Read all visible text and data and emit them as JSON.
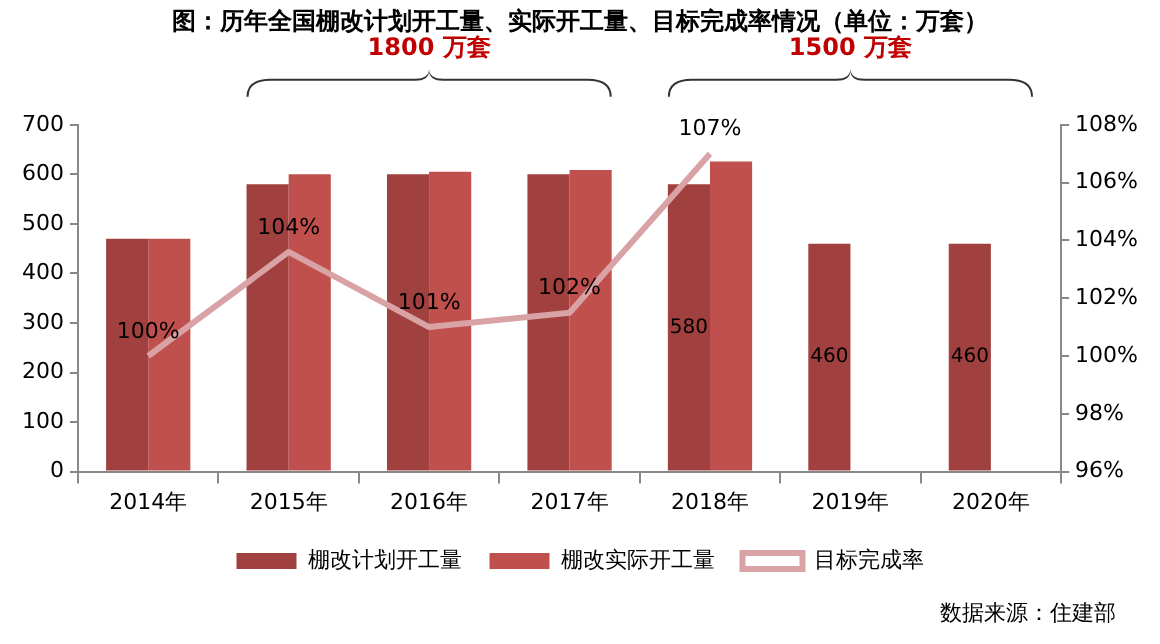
{
  "chart_data": {
    "type": "bar",
    "title": "图：历年全国棚改计划开工量、实际开工量、目标完成率情况（单位：万套）",
    "categories": [
      "2014年",
      "2015年",
      "2016年",
      "2017年",
      "2018年",
      "2019年",
      "2020年"
    ],
    "series": [
      {
        "name": "棚改计划开工量",
        "color": "#a0403f",
        "values": [
          470,
          580,
          600,
          600,
          580,
          460,
          460
        ],
        "value_labels": [
          null,
          null,
          null,
          null,
          "580",
          "460",
          "460"
        ]
      },
      {
        "name": "棚改实际开工量",
        "color": "#c0504d",
        "values": [
          470,
          600,
          605,
          609,
          626,
          null,
          null
        ]
      },
      {
        "name": "目标完成率",
        "type": "line",
        "axis": "y2",
        "color": "#d9a3a6",
        "values": [
          100,
          103.6,
          101,
          101.5,
          107,
          null,
          null
        ],
        "value_labels": [
          "100%",
          "104%",
          "101%",
          "102%",
          "107%",
          null,
          null
        ]
      }
    ],
    "ylim": [
      0,
      700
    ],
    "yticks": [
      0,
      100,
      200,
      300,
      400,
      500,
      600,
      700
    ],
    "y2lim": [
      96,
      108
    ],
    "y2ticks": [
      {
        "value": 96,
        "label": "96%"
      },
      {
        "value": 98,
        "label": "98%"
      },
      {
        "value": 100,
        "label": "100%"
      },
      {
        "value": 102,
        "label": "102%"
      },
      {
        "value": 104,
        "label": "104%"
      },
      {
        "value": 106,
        "label": "106%"
      },
      {
        "value": 108,
        "label": "108%"
      }
    ],
    "grid": false,
    "legend": "bottom",
    "marker": "none",
    "annotations": [
      "1800 万套",
      "1500 万套",
      "数据来源：住建部"
    ]
  }
}
